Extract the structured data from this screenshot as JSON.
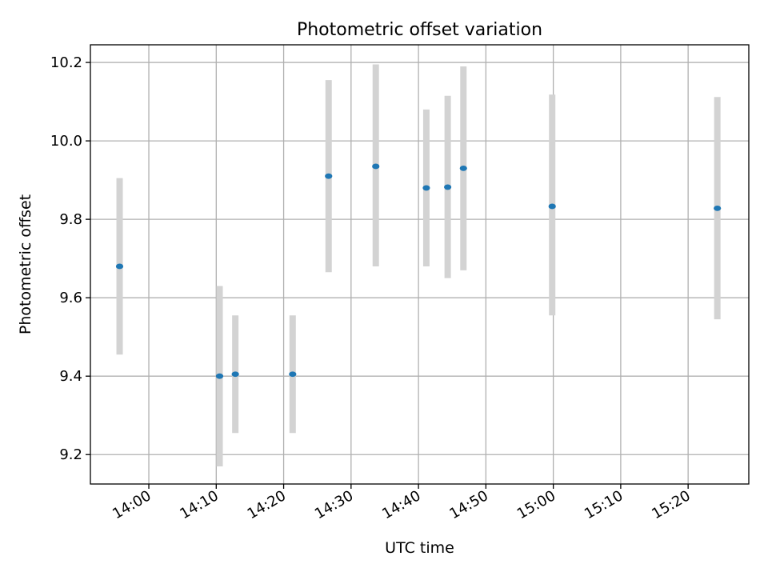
{
  "chart_data": {
    "type": "scatter",
    "title": "Photometric offset variation",
    "xlabel": "UTC time",
    "ylabel": "Photometric offset",
    "xlim": [
      "13:51:20",
      "15:29:00"
    ],
    "ylim": [
      9.125,
      10.245
    ],
    "grid": true,
    "x_ticks": [
      "14:00",
      "14:10",
      "14:20",
      "14:30",
      "14:40",
      "14:50",
      "15:00",
      "15:10",
      "15:20"
    ],
    "y_ticks": [
      "9.2",
      "9.4",
      "9.6",
      "9.8",
      "10.0",
      "10.2"
    ],
    "points": [
      {
        "x": "13:55:40",
        "y": 9.68,
        "low": 9.455,
        "high": 9.905
      },
      {
        "x": "14:10:30",
        "y": 9.4,
        "low": 9.17,
        "high": 9.63
      },
      {
        "x": "14:12:50",
        "y": 9.405,
        "low": 9.255,
        "high": 9.555
      },
      {
        "x": "14:21:20",
        "y": 9.405,
        "low": 9.255,
        "high": 9.555
      },
      {
        "x": "14:26:40",
        "y": 9.91,
        "low": 9.665,
        "high": 10.155
      },
      {
        "x": "14:33:40",
        "y": 9.935,
        "low": 9.68,
        "high": 10.195
      },
      {
        "x": "14:41:10",
        "y": 9.88,
        "low": 9.68,
        "high": 10.08
      },
      {
        "x": "14:44:20",
        "y": 9.882,
        "low": 9.65,
        "high": 10.115
      },
      {
        "x": "14:46:40",
        "y": 9.93,
        "low": 9.67,
        "high": 10.19
      },
      {
        "x": "14:59:50",
        "y": 9.833,
        "low": 9.555,
        "high": 10.118
      },
      {
        "x": "15:24:20",
        "y": 9.828,
        "low": 9.545,
        "high": 10.112
      }
    ],
    "colors": {
      "point": "#1f77b4",
      "errorbar": "#d3d3d3",
      "grid": "#b0b0b0"
    }
  }
}
